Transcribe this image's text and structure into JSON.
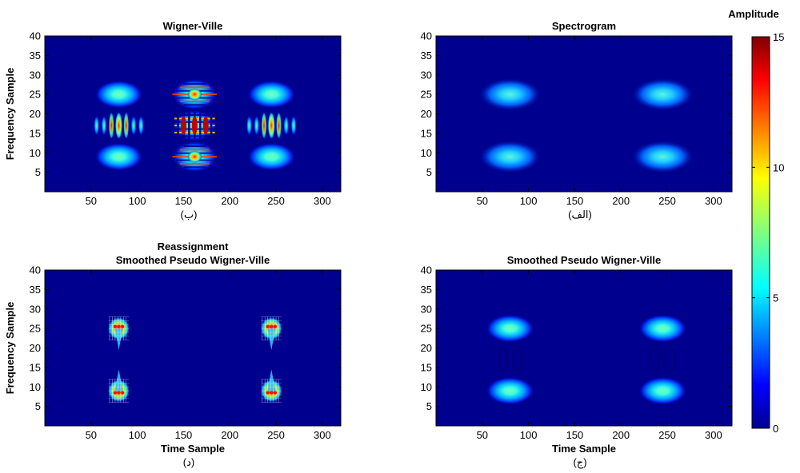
{
  "chart_data": [
    {
      "type": "heatmap",
      "title": "Wigner-Ville",
      "caption": "(ب)",
      "xlabel": "",
      "ylabel": "Frequency Sample",
      "xlim": [
        0,
        320
      ],
      "ylim": [
        0,
        40
      ],
      "xticks": [
        50,
        100,
        150,
        200,
        250,
        300
      ],
      "yticks": [
        5,
        10,
        15,
        20,
        25,
        30,
        35,
        40
      ],
      "components": [
        {
          "x": 80,
          "y": 25,
          "amplitude": 7,
          "kind": "blob"
        },
        {
          "x": 80,
          "y": 9,
          "amplitude": 7,
          "kind": "blob"
        },
        {
          "x": 245,
          "y": 25,
          "amplitude": 7,
          "kind": "blob"
        },
        {
          "x": 245,
          "y": 9,
          "amplitude": 7,
          "kind": "blob"
        },
        {
          "x": 80,
          "y": 17,
          "amplitude": 14,
          "kind": "interference-vertical"
        },
        {
          "x": 245,
          "y": 17,
          "amplitude": 14,
          "kind": "interference-vertical"
        },
        {
          "x": 162,
          "y": 25,
          "amplitude": 14,
          "kind": "interference-horizontal"
        },
        {
          "x": 162,
          "y": 9,
          "amplitude": 14,
          "kind": "interference-horizontal"
        },
        {
          "x": 162,
          "y": 17,
          "amplitude": 15,
          "kind": "interference-checker"
        }
      ]
    },
    {
      "type": "heatmap",
      "title": "Spectrogram",
      "caption": "(الف)",
      "xlabel": "",
      "ylabel": "",
      "xlim": [
        0,
        320
      ],
      "ylim": [
        0,
        40
      ],
      "xticks": [
        50,
        100,
        150,
        200,
        250,
        300
      ],
      "yticks": [
        5,
        10,
        15,
        20,
        25,
        30,
        35,
        40
      ],
      "components": [
        {
          "x": 80,
          "y": 25,
          "amplitude": 6,
          "kind": "blob-wide"
        },
        {
          "x": 80,
          "y": 9,
          "amplitude": 6,
          "kind": "blob-wide"
        },
        {
          "x": 245,
          "y": 25,
          "amplitude": 6,
          "kind": "blob-wide"
        },
        {
          "x": 245,
          "y": 9,
          "amplitude": 6,
          "kind": "blob-wide"
        }
      ]
    },
    {
      "type": "heatmap",
      "title": "Reassignment\nSmoothed Pseudo Wigner-Ville",
      "title_lines": [
        "Reassignment",
        "Smoothed Pseudo Wigner-Ville"
      ],
      "caption": "(د)",
      "xlabel": "Time Sample",
      "ylabel": "Frequency Sample",
      "xlim": [
        0,
        320
      ],
      "ylim": [
        0,
        40
      ],
      "xticks": [
        50,
        100,
        150,
        200,
        250,
        300
      ],
      "yticks": [
        5,
        10,
        15,
        20,
        25,
        30,
        35,
        40
      ],
      "components": [
        {
          "x": 80,
          "y": 25,
          "amplitude": 13,
          "kind": "speckle-top"
        },
        {
          "x": 80,
          "y": 9,
          "amplitude": 13,
          "kind": "speckle-bottom"
        },
        {
          "x": 245,
          "y": 25,
          "amplitude": 13,
          "kind": "speckle-top"
        },
        {
          "x": 245,
          "y": 9,
          "amplitude": 13,
          "kind": "speckle-bottom"
        }
      ]
    },
    {
      "type": "heatmap",
      "title": "Smoothed Pseudo Wigner-Ville",
      "caption": "(ج)",
      "xlabel": "Time Sample",
      "ylabel": "",
      "xlim": [
        0,
        320
      ],
      "ylim": [
        0,
        40
      ],
      "xticks": [
        50,
        100,
        150,
        200,
        250,
        300
      ],
      "yticks": [
        5,
        10,
        15,
        20,
        25,
        30,
        35,
        40
      ],
      "components": [
        {
          "x": 80,
          "y": 25,
          "amplitude": 6,
          "kind": "blob"
        },
        {
          "x": 80,
          "y": 9,
          "amplitude": 6,
          "kind": "blob"
        },
        {
          "x": 245,
          "y": 25,
          "amplitude": 6,
          "kind": "blob"
        },
        {
          "x": 245,
          "y": 9,
          "amplitude": 6,
          "kind": "blob"
        },
        {
          "x": 80,
          "y": 17,
          "amplitude": 0.6,
          "kind": "faint-ring"
        },
        {
          "x": 245,
          "y": 17,
          "amplitude": 0.6,
          "kind": "faint-ring"
        }
      ]
    }
  ],
  "colorbar": {
    "label": "Amplitude",
    "min": 0,
    "max": 15,
    "ticks": [
      0,
      5,
      10,
      15
    ],
    "colormap": "jet",
    "background_color": "#00008f"
  }
}
